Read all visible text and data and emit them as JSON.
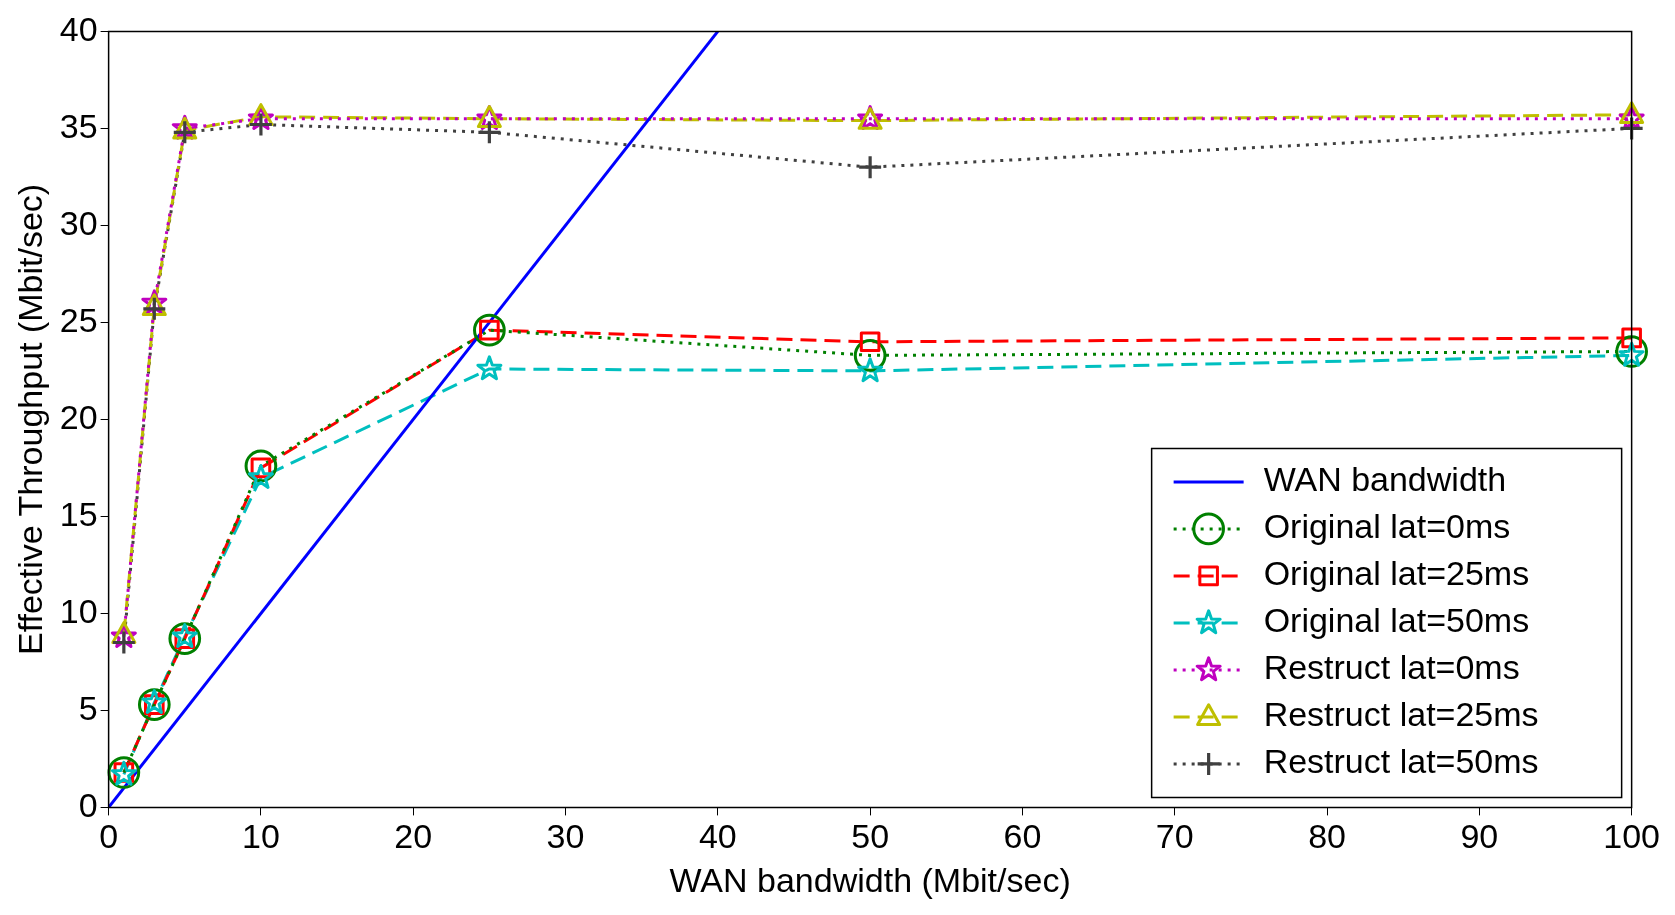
{
  "chart_data": {
    "type": "line",
    "xlabel": "WAN bandwidth (Mbit/sec)",
    "ylabel": "Effective Throughput (Mbit/sec)",
    "x": [
      1,
      3,
      5,
      10,
      25,
      50,
      100
    ],
    "xlim": [
      0,
      100
    ],
    "xticks": [
      0,
      10,
      20,
      30,
      40,
      50,
      60,
      70,
      80,
      90,
      100
    ],
    "ylim": [
      0,
      40
    ],
    "yticks": [
      0,
      5,
      10,
      15,
      20,
      25,
      30,
      35,
      40
    ],
    "grid": false,
    "legend": "bottom right",
    "series": [
      {
        "name": "WAN bandwidth",
        "color": "#0000ff",
        "x": [
          0,
          40
        ],
        "values": [
          0,
          40
        ],
        "marker": "none",
        "line_style": "solid"
      },
      {
        "name": "Original lat=0ms",
        "color": "#008000",
        "values": [
          1.8,
          5.3,
          8.7,
          17.6,
          24.6,
          23.3,
          23.5
        ],
        "marker": "circle",
        "line_style": "dotted"
      },
      {
        "name": "Original lat=25ms",
        "color": "#ff0000",
        "values": [
          1.8,
          5.3,
          8.7,
          17.5,
          24.6,
          24.0,
          24.2
        ],
        "marker": "square",
        "line_style": "dashed"
      },
      {
        "name": "Original lat=50ms",
        "color": "#00bfbf",
        "values": [
          1.7,
          5.4,
          8.8,
          17.0,
          22.6,
          22.5,
          23.3
        ],
        "marker": "star",
        "line_style": "dashed"
      },
      {
        "name": "Restruct lat=0ms",
        "color": "#bf00bf",
        "values": [
          8.8,
          26.0,
          35.0,
          35.5,
          35.5,
          35.5,
          35.5
        ],
        "marker": "star",
        "line_style": "dotted"
      },
      {
        "name": "Restruct lat=25ms",
        "color": "#bfbf00",
        "values": [
          8.9,
          25.8,
          34.9,
          35.6,
          35.5,
          35.4,
          35.7
        ],
        "marker": "triangle",
        "line_style": "dashed"
      },
      {
        "name": "Restruct lat=50ms",
        "color": "#404040",
        "values": [
          8.5,
          25.7,
          34.8,
          35.2,
          34.8,
          33.0,
          35.0
        ],
        "marker": "cross",
        "line_style": "dotted"
      }
    ]
  }
}
